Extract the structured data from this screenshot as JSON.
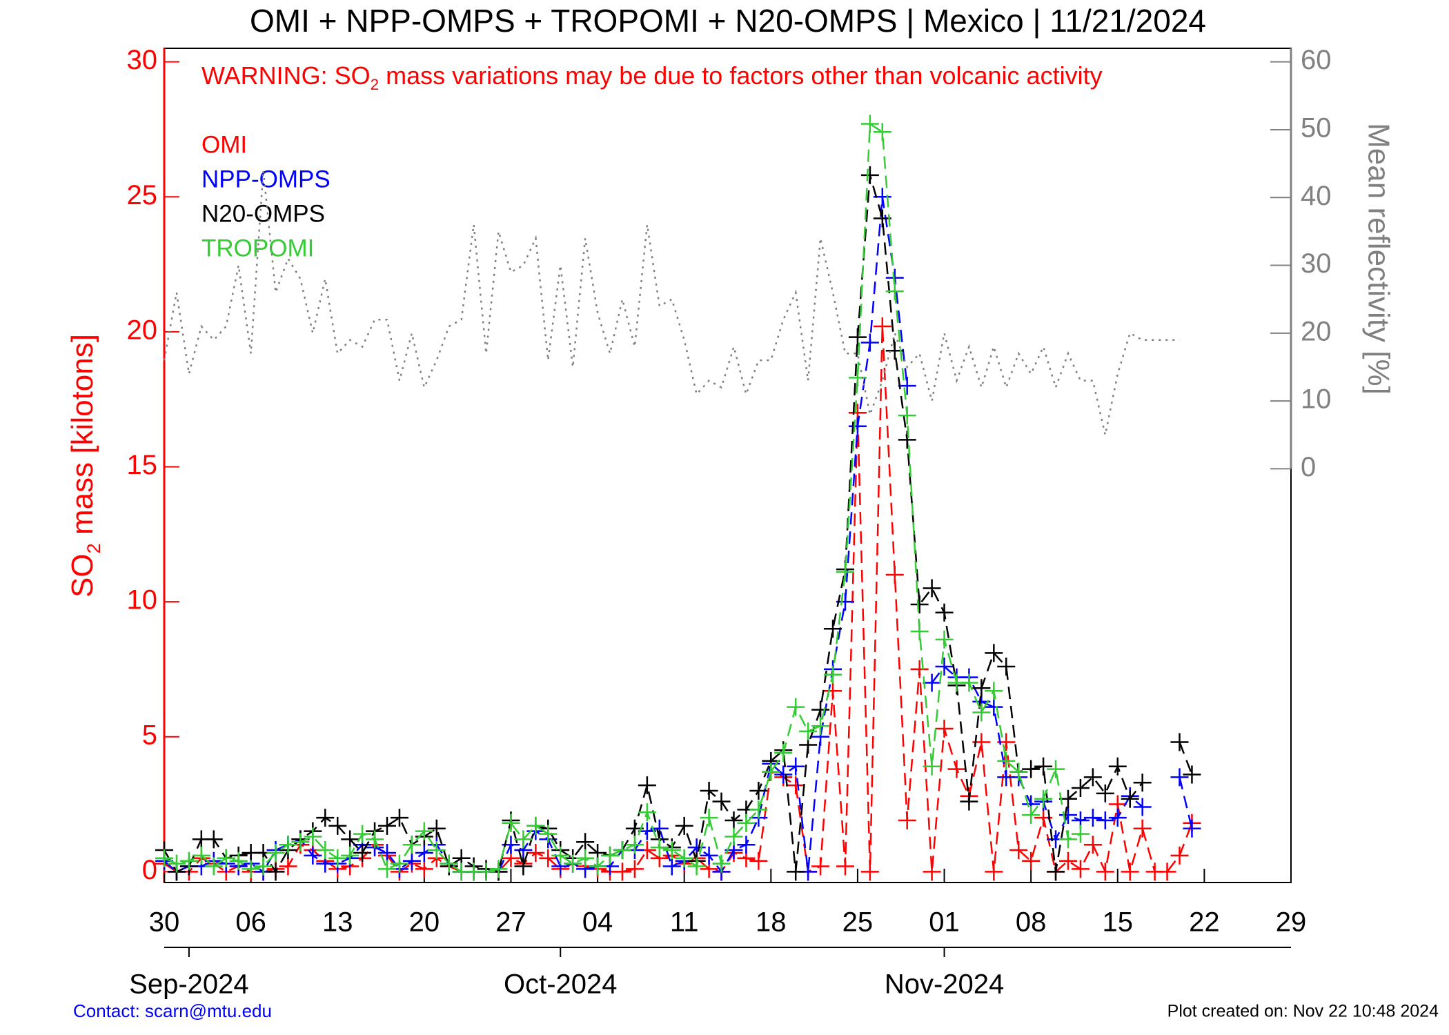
{
  "chart_data": {
    "type": "line",
    "title": "OMI + NPP-OMPS + TROPOMI + N20-OMPS | Mexico | 11/21/2024",
    "warning": [
      "WARNING: SO",
      "2",
      " mass variations may be due to factors other than volcanic activity"
    ],
    "ylabel": [
      "SO",
      "2",
      " mass [kilotons]"
    ],
    "y2label": "Mean reflectivity [%]",
    "contact": "Contact: scarn@mtu.edu",
    "created": "Plot created on: Nov 22 10:48 2024",
    "x": [
      "2024-08-30",
      "2024-08-31",
      "2024-09-01",
      "2024-09-02",
      "2024-09-03",
      "2024-09-04",
      "2024-09-05",
      "2024-09-06",
      "2024-09-07",
      "2024-09-08",
      "2024-09-09",
      "2024-09-10",
      "2024-09-11",
      "2024-09-12",
      "2024-09-13",
      "2024-09-14",
      "2024-09-15",
      "2024-09-16",
      "2024-09-17",
      "2024-09-18",
      "2024-09-19",
      "2024-09-20",
      "2024-09-21",
      "2024-09-22",
      "2024-09-23",
      "2024-09-24",
      "2024-09-25",
      "2024-09-26",
      "2024-09-27",
      "2024-09-28",
      "2024-09-29",
      "2024-09-30",
      "2024-10-01",
      "2024-10-02",
      "2024-10-03",
      "2024-10-04",
      "2024-10-05",
      "2024-10-06",
      "2024-10-07",
      "2024-10-08",
      "2024-10-09",
      "2024-10-10",
      "2024-10-11",
      "2024-10-12",
      "2024-10-13",
      "2024-10-14",
      "2024-10-15",
      "2024-10-16",
      "2024-10-17",
      "2024-10-18",
      "2024-10-19",
      "2024-10-20",
      "2024-10-21",
      "2024-10-22",
      "2024-10-23",
      "2024-10-24",
      "2024-10-25",
      "2024-10-26",
      "2024-10-27",
      "2024-10-28",
      "2024-10-29",
      "2024-10-30",
      "2024-10-31",
      "2024-11-01",
      "2024-11-02",
      "2024-11-03",
      "2024-11-04",
      "2024-11-05",
      "2024-11-06",
      "2024-11-07",
      "2024-11-08",
      "2024-11-09",
      "2024-11-10",
      "2024-11-11",
      "2024-11-12",
      "2024-11-13",
      "2024-11-14",
      "2024-11-15",
      "2024-11-16",
      "2024-11-17",
      "2024-11-18",
      "2024-11-19",
      "2024-11-20",
      "2024-11-21"
    ],
    "xlim": [
      "2024-08-30",
      "2024-11-29"
    ],
    "xticks": [
      {
        "value": "2024-08-30",
        "label": "30"
      },
      {
        "value": "2024-09-06",
        "label": "06"
      },
      {
        "value": "2024-09-13",
        "label": "13"
      },
      {
        "value": "2024-09-20",
        "label": "20"
      },
      {
        "value": "2024-09-27",
        "label": "27"
      },
      {
        "value": "2024-10-04",
        "label": "04"
      },
      {
        "value": "2024-10-11",
        "label": "11"
      },
      {
        "value": "2024-10-18",
        "label": "18"
      },
      {
        "value": "2024-10-25",
        "label": "25"
      },
      {
        "value": "2024-11-01",
        "label": "01"
      },
      {
        "value": "2024-11-08",
        "label": "08"
      },
      {
        "value": "2024-11-15",
        "label": "15"
      },
      {
        "value": "2024-11-22",
        "label": "22"
      },
      {
        "value": "2024-11-29",
        "label": "29"
      }
    ],
    "month_ticks": [
      {
        "value": "2024-09-01",
        "label": "Sep-2024"
      },
      {
        "value": "2024-10-01",
        "label": "Oct-2024"
      },
      {
        "value": "2024-11-01",
        "label": "Nov-2024"
      }
    ],
    "ylim": [
      -0.4,
      30.5
    ],
    "yticks": [
      0,
      5,
      10,
      15,
      20,
      25,
      30
    ],
    "y2lim": [
      -61,
      62
    ],
    "y2ticks": [
      0,
      10,
      20,
      30,
      40,
      50,
      60
    ],
    "series": [
      {
        "name": "OMI",
        "color": "#ff0000",
        "linestyle": "dashed",
        "marker": "+",
        "values": [
          0.3,
          0,
          0,
          0.5,
          0.3,
          0,
          0.2,
          0,
          0,
          0.1,
          0.2,
          1.0,
          0.8,
          0.4,
          0.1,
          0.2,
          0.5,
          1.0,
          0.6,
          0,
          0.3,
          0.1,
          0.5,
          0.2,
          0,
          0,
          0,
          0,
          0.5,
          0.3,
          0.7,
          0.5,
          0.1,
          0.3,
          0.2,
          0.1,
          0,
          0,
          0.1,
          0.8,
          0.5,
          0.6,
          0.3,
          0.5,
          0.1,
          0,
          0.7,
          0.5,
          0.4,
          3.7,
          3.5,
          3.2,
          0,
          0.2,
          6.7,
          0.2,
          17.0,
          0,
          20.2,
          11.0,
          1.9,
          7.5,
          0,
          5.3,
          3.8,
          2.8,
          4.8,
          0,
          4.8,
          0.8,
          0.4,
          2.0,
          0,
          0.4,
          0.1,
          1.0,
          0,
          2.5,
          0,
          1.6,
          0,
          0,
          0.6,
          1.8
        ]
      },
      {
        "name": "NPP-OMPS",
        "color": "#0000ff",
        "linestyle": "dashed",
        "marker": "+",
        "values": [
          0.4,
          0,
          0.2,
          0.2,
          0.4,
          0.3,
          0.2,
          0.3,
          0,
          0.8,
          1.0,
          1.2,
          0.6,
          0.3,
          0.3,
          0.5,
          1.0,
          0.9,
          0.7,
          0.1,
          0.4,
          0.7,
          1.0,
          0.3,
          0,
          0,
          0,
          0,
          1.0,
          0.8,
          1.5,
          1.2,
          0.2,
          0.3,
          0.1,
          0.2,
          0.2,
          0.8,
          0.8,
          1.5,
          1.6,
          0.2,
          0.4,
          0.9,
          0.6,
          0,
          0.8,
          1.0,
          2.0,
          4.0,
          3.6,
          3.9,
          0,
          5.0,
          7.5,
          10.0,
          16.5,
          19.6,
          25.0,
          22.0,
          18.0,
          null,
          7.0,
          7.6,
          7.2,
          7.2,
          6.3,
          6.1,
          3.5,
          3.5,
          2.5,
          2.6,
          1.2,
          2.1,
          1.9,
          2.0,
          1.9,
          2.0,
          2.8,
          2.4,
          null,
          null,
          3.5,
          1.6
        ]
      },
      {
        "name": "N20-OMPS",
        "color": "#000000",
        "linestyle": "dashed",
        "marker": "+",
        "values": [
          0.8,
          0,
          0.2,
          1.2,
          1.2,
          0.5,
          0.6,
          0.7,
          0.7,
          0,
          0.8,
          1.2,
          1.5,
          2.0,
          1.7,
          1.2,
          0.7,
          1.5,
          1.7,
          2.0,
          1.0,
          1.3,
          1.6,
          0.2,
          0.5,
          0.2,
          0.1,
          0,
          1.9,
          0.2,
          1.7,
          1.6,
          0.8,
          0.5,
          1.1,
          0.7,
          0.6,
          0.8,
          1.6,
          3.2,
          1.2,
          0.9,
          1.7,
          0.4,
          3.0,
          2.6,
          1.9,
          2.3,
          3.0,
          4.1,
          4.5,
          0,
          4.7,
          6.0,
          9.0,
          11.2,
          19.8,
          25.8,
          24.2,
          19.3,
          16.0,
          9.9,
          10.5,
          9.6,
          6.9,
          2.6,
          6.8,
          8.1,
          7.6,
          3.7,
          3.8,
          3.9,
          0,
          2.7,
          3.1,
          3.5,
          2.9,
          3.9,
          2.7,
          3.3,
          null,
          null,
          4.8,
          3.6
        ]
      },
      {
        "name": "TROPOMI",
        "color": "#33cc33",
        "linestyle": "dashed",
        "marker": "+",
        "values": [
          0.5,
          0.3,
          0.4,
          0.6,
          0.2,
          0.5,
          0.4,
          0.1,
          0.2,
          0.7,
          1.0,
          1.1,
          1.3,
          0.8,
          0.5,
          0.6,
          1.4,
          1.2,
          0.1,
          0.3,
          1.0,
          1.5,
          0.8,
          0.3,
          0,
          0,
          0,
          0.1,
          1.8,
          1.2,
          1.7,
          1.4,
          0.6,
          0.3,
          0.5,
          0.2,
          0.6,
          0.8,
          1.0,
          2.2,
          0.9,
          0.8,
          0.5,
          0.2,
          2.0,
          0.3,
          1.3,
          1.8,
          2.3,
          3.7,
          4.4,
          6.1,
          5.2,
          5.4,
          7.3,
          11.1,
          18.3,
          27.7,
          27.4,
          21.5,
          16.9,
          8.9,
          3.9,
          8.6,
          7.0,
          7.0,
          5.9,
          6.7,
          4.1,
          3.7,
          2.1,
          2.7,
          3.8,
          1.2,
          1.4,
          null,
          null,
          null,
          null,
          null,
          null,
          null,
          null,
          null
        ]
      },
      {
        "color": "#808080",
        "linestyle": "dotted",
        "axis": "y2",
        "values": [
          16,
          26,
          14,
          21,
          19,
          21,
          30,
          17,
          44,
          26,
          31,
          28,
          20,
          28,
          17,
          19,
          18,
          22,
          22,
          13,
          20,
          12,
          16,
          21,
          22,
          36,
          17,
          35,
          29,
          30,
          34,
          16,
          30,
          15,
          34,
          23,
          17,
          25,
          18,
          36,
          24,
          25,
          19,
          11,
          13,
          12,
          18,
          11,
          16,
          16,
          22,
          26,
          13,
          34,
          26,
          17,
          17,
          8,
          13,
          20,
          15,
          17,
          10,
          20,
          13,
          18,
          12,
          18,
          12,
          17,
          14,
          18,
          12,
          17,
          13,
          13,
          5,
          14,
          20,
          19,
          19,
          19,
          19,
          null
        ]
      }
    ]
  }
}
